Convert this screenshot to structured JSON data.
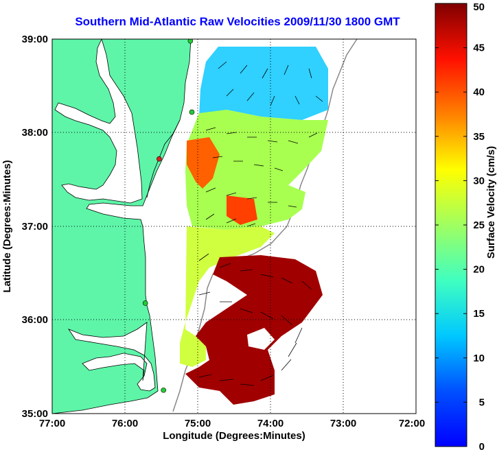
{
  "chart_data": {
    "type": "heatmap",
    "title": "Southern Mid-Atlantic Raw Velocities 2009/11/30 1800 GMT",
    "xlabel": "Longitude (Degrees:Minutes)",
    "ylabel": "Latitude (Degrees:Minutes)",
    "x_ticks": [
      "77:00",
      "76:00",
      "75:00",
      "74:00",
      "73:00",
      "72:00"
    ],
    "y_ticks": [
      "39:00",
      "38:00",
      "37:00",
      "36:00",
      "35:00"
    ],
    "xlim": [
      -77,
      -72
    ],
    "ylim": [
      35,
      39
    ],
    "grid": true,
    "colorbar": {
      "label": "Surface Velocity (cm/s)",
      "min": 0,
      "max": 50,
      "ticks": [
        "0",
        "5",
        "10",
        "15",
        "20",
        "25",
        "30",
        "35",
        "40",
        "45",
        "50"
      ]
    },
    "colors": {
      "land": "#5ef5a8",
      "title": "#0000ff",
      "station": "#22cc33",
      "station_alt": "#e02020"
    },
    "stations": [
      {
        "lon": -75.1,
        "lat": 38.98,
        "status": "active"
      },
      {
        "lon": -75.08,
        "lat": 38.22,
        "status": "active"
      },
      {
        "lon": -75.53,
        "lat": 37.72,
        "status": "alternate"
      },
      {
        "lon": -75.72,
        "lat": 36.18,
        "status": "active"
      },
      {
        "lon": -75.47,
        "lat": 35.25,
        "status": "active"
      }
    ]
  }
}
